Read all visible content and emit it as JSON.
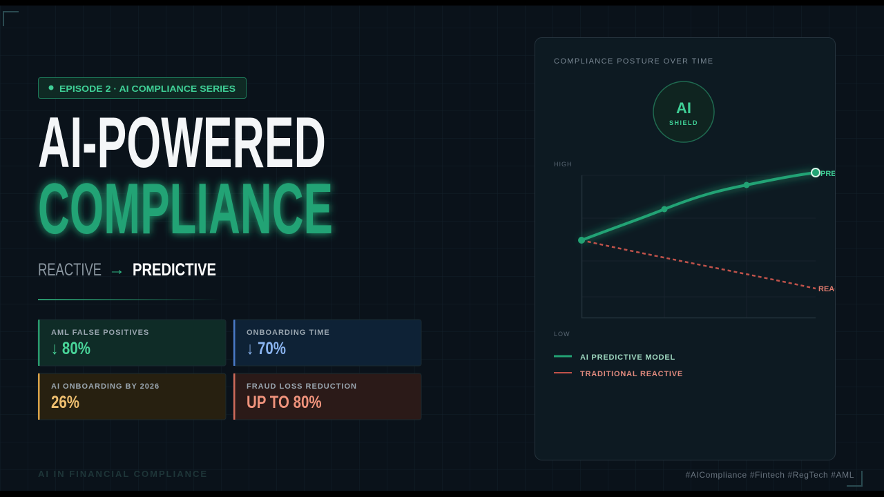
{
  "badge": "EPISODE 2 · AI COMPLIANCE SERIES",
  "title": {
    "line1": "AI-POWERED",
    "line2": "COMPLIANCE"
  },
  "tagline": {
    "from": "REACTIVE",
    "arrow": "→",
    "to": "PREDICTIVE"
  },
  "stats": [
    {
      "label": "AML FALSE POSITIVES",
      "value": "↓ 80%"
    },
    {
      "label": "ONBOARDING TIME",
      "value": "↓ 70%"
    },
    {
      "label": "AI ONBOARDING BY 2026",
      "value": "26%"
    },
    {
      "label": "FRAUD LOSS REDUCTION",
      "value": "UP TO 80%"
    }
  ],
  "panel": {
    "title": "COMPLIANCE POSTURE OVER TIME",
    "shield": {
      "label": "AI",
      "sublabel": "SHIELD"
    },
    "axis": {
      "high": "HIGH",
      "low": "LOW"
    },
    "line_labels": {
      "ai": "PREDICTIVE",
      "traditional": "REACTIVE"
    },
    "legend": [
      "AI PREDICTIVE MODEL",
      "TRADITIONAL REACTIVE"
    ]
  },
  "footer": {
    "left": "AI IN FINANCIAL COMPLIANCE",
    "hashtags": "#AICompliance #Fintech #RegTech #AML"
  }
}
